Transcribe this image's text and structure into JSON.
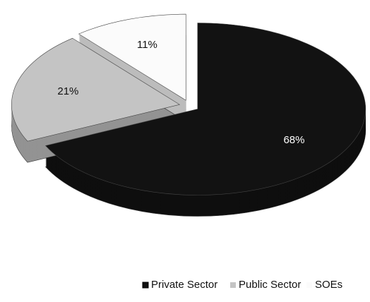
{
  "chart_data": {
    "type": "pie3d",
    "categories": [
      "Private Sector",
      "Public Sector",
      "SOEs"
    ],
    "values": [
      68,
      21,
      11
    ],
    "value_labels": [
      "68%",
      "21%",
      "11%"
    ],
    "colors": [
      "#121212",
      "#c4c4c4",
      "#fbfbfb"
    ],
    "label_colors": [
      "#ffffff",
      "#111111",
      "#111111"
    ],
    "legend": "bottom"
  }
}
